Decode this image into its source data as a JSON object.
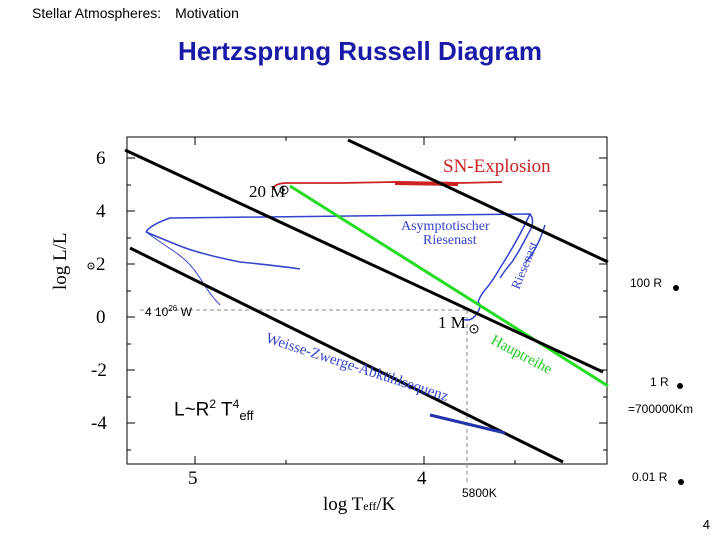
{
  "header": {
    "section": "Stellar Atmospheres:",
    "topic": "Motivation"
  },
  "title": "Hertzsprung Russell Diagram",
  "axes": {
    "y_label": "log L/L",
    "y_ticks": [
      "6",
      "4",
      "2",
      "0",
      "-2",
      "-4"
    ],
    "x_label_log": "log T",
    "x_label_sub": "eff",
    "x_label_unit": "/K",
    "x_ticks": [
      "5",
      "4"
    ]
  },
  "diagram_labels": {
    "sn_explosion": "SN-Explosion",
    "mass_20": "20 M",
    "mass_1": "1 M",
    "agb": "Asymptotischer",
    "agb2": "Riesenast",
    "giant_branch": "Riesenast",
    "main_sequence": "Hauptreihe",
    "white_dwarf": "Weisse-Zwerge-Abkühlsequenz"
  },
  "annotations": {
    "r100": "100 R",
    "r1": "1 R",
    "r001": "0.01 R",
    "km": "=700000Km",
    "lum": "4 10",
    "lum_exp": "26",
    "lum_unit": "W",
    "temp": "5800K",
    "formula_a": "L~R",
    "formula_b": "2",
    "formula_c": " T",
    "formula_d": "4",
    "formula_e": "eff"
  },
  "page_number": "4",
  "colors": {
    "title": "#1a1aa6",
    "main_sequence": "#22dd22",
    "tracks": "#3344cc",
    "sn": "#cc2222",
    "radius_lines": "#000000",
    "white_dwarf": "#2233aa"
  }
}
